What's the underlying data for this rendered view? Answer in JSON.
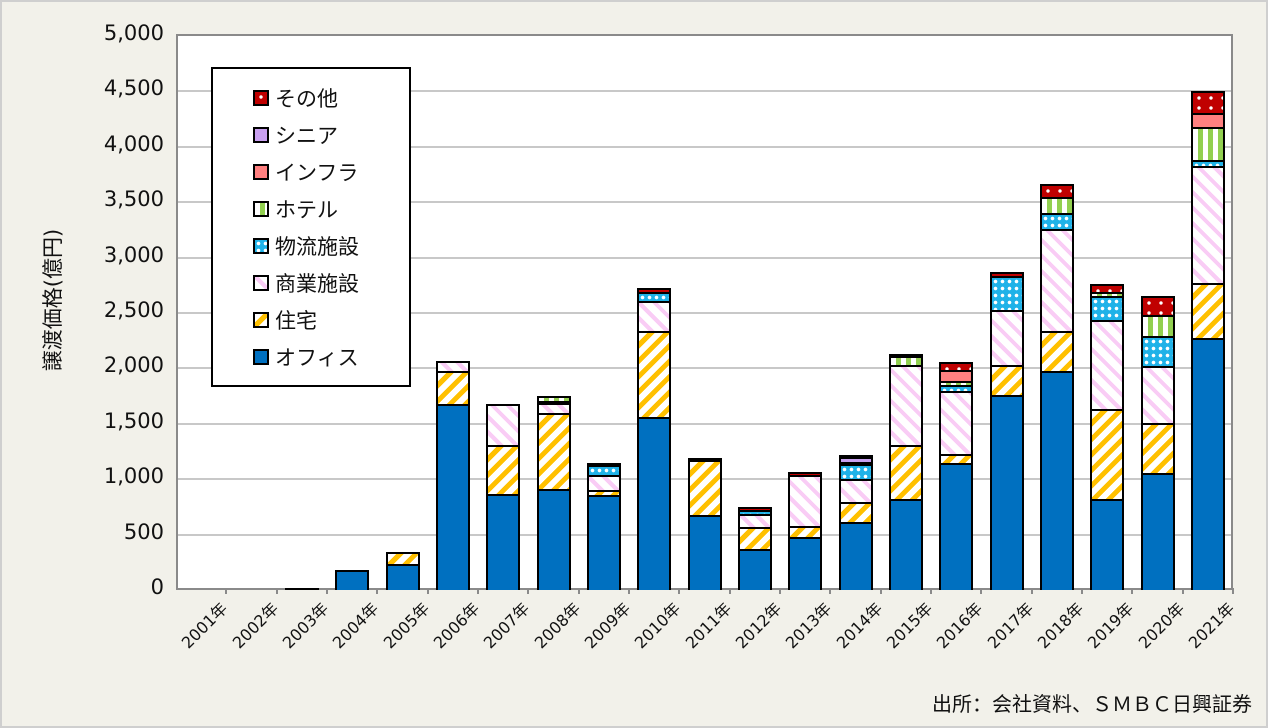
{
  "chart_data": {
    "type": "bar",
    "stacked": true,
    "title": "",
    "xlabel": "",
    "ylabel": "譲渡価格(億円)",
    "ylim": [
      0,
      5000
    ],
    "yticks": [
      "0",
      "500",
      "1,000",
      "1,500",
      "2,000",
      "2,500",
      "3,000",
      "3,500",
      "4,000",
      "4,500",
      "5,000"
    ],
    "grid": true,
    "legend_position": "upper-left inside",
    "categories": [
      "2001年",
      "2002年",
      "2003年",
      "2004年",
      "2005年",
      "2006年",
      "2007年",
      "2008年",
      "2009年",
      "2010年",
      "2011年",
      "2012年",
      "2013年",
      "2014年",
      "2015年",
      "2016年",
      "2017年",
      "2018年",
      "2019年",
      "2020年",
      "2021年"
    ],
    "series": [
      {
        "name": "オフィス",
        "key": "office",
        "color": "#0070C0",
        "values": [
          0,
          0,
          10,
          180,
          235,
          1680,
          870,
          910,
          855,
          1560,
          680,
          370,
          480,
          610,
          820,
          1150,
          1760,
          1975,
          825,
          1055,
          2270
        ]
      },
      {
        "name": "住宅",
        "key": "residential",
        "color": "#FFC000",
        "values": [
          0,
          0,
          0,
          0,
          105,
          300,
          435,
          690,
          45,
          775,
          490,
          200,
          100,
          185,
          490,
          75,
          270,
          360,
          805,
          455,
          500
        ]
      },
      {
        "name": "商業施設",
        "key": "commercial",
        "color": "#F9CCF5",
        "values": [
          0,
          0,
          0,
          0,
          0,
          90,
          375,
          90,
          135,
          270,
          0,
          120,
          460,
          205,
          720,
          570,
          500,
          920,
          805,
          515,
          1055
        ]
      },
      {
        "name": "物流施設",
        "key": "logistics",
        "color": "#1FB2E8",
        "values": [
          0,
          0,
          0,
          0,
          0,
          0,
          0,
          20,
          90,
          85,
          0,
          35,
          0,
          140,
          0,
          55,
          305,
          150,
          215,
          270,
          55
        ]
      },
      {
        "name": "ホテル",
        "key": "hotel",
        "color": "#92D050",
        "values": [
          0,
          0,
          0,
          0,
          0,
          0,
          0,
          45,
          0,
          0,
          0,
          0,
          0,
          15,
          80,
          40,
          0,
          145,
          40,
          190,
          295
        ]
      },
      {
        "name": "インフラ",
        "key": "infra",
        "color": "#FF8080",
        "values": [
          0,
          0,
          0,
          0,
          0,
          0,
          0,
          0,
          0,
          0,
          0,
          0,
          0,
          0,
          0,
          95,
          0,
          0,
          0,
          0,
          130
        ]
      },
      {
        "name": "シニア",
        "key": "senior",
        "color": "#C9A0F0",
        "values": [
          0,
          0,
          0,
          0,
          0,
          0,
          0,
          0,
          0,
          0,
          0,
          0,
          0,
          50,
          0,
          0,
          0,
          0,
          0,
          0,
          0
        ]
      },
      {
        "name": "その他",
        "key": "other",
        "color": "#C00000",
        "values": [
          0,
          0,
          0,
          0,
          0,
          0,
          0,
          0,
          20,
          35,
          15,
          25,
          25,
          10,
          10,
          70,
          35,
          110,
          70,
          170,
          195
        ]
      }
    ],
    "source": "出所：会社資料、ＳＭＢＣ日興証券"
  },
  "legend": {
    "items": [
      {
        "label": "その他",
        "key": "other"
      },
      {
        "label": "シニア",
        "key": "senior"
      },
      {
        "label": "インフラ",
        "key": "infra"
      },
      {
        "label": "ホテル",
        "key": "hotel"
      },
      {
        "label": "物流施設",
        "key": "logistics"
      },
      {
        "label": "商業施設",
        "key": "commercial"
      },
      {
        "label": "住宅",
        "key": "residential"
      },
      {
        "label": "オフィス",
        "key": "office"
      }
    ]
  },
  "axis": {
    "ylabel": "譲渡価格(億円)"
  },
  "footer": {
    "source": "出所：会社資料、ＳＭＢＣ日興証券"
  }
}
